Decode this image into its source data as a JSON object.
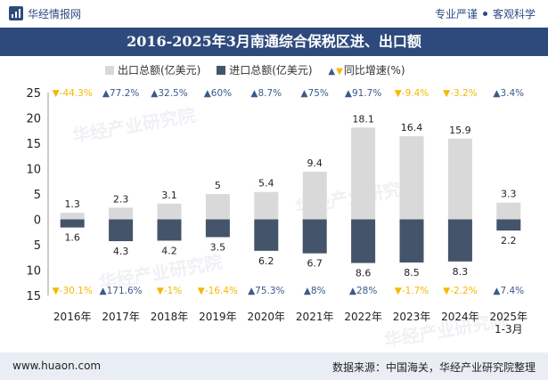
{
  "header": {
    "brand": "华经情报网",
    "slogan_left": "专业严谨",
    "slogan_right": "客观科学"
  },
  "title": "2016-2025年3月南通综合保税区进、出口额",
  "legend": {
    "export_label": "出口总额(亿美元)",
    "import_label": "进口总额(亿美元)",
    "yoy_label": "同比增速(%)"
  },
  "watermark": {
    "cn": "华经产业研究院",
    "en": "www.huaon.com"
  },
  "footer": {
    "site": "www.huaon.com",
    "source": "数据来源：中国海关，华经产业研究院整理"
  },
  "colors": {
    "export_bar": "#d9d9d9",
    "import_bar": "#44546a",
    "up_arrow": "#3a5a8c",
    "down_arrow": "#f5b800",
    "title_bg": "#2e4a7d"
  },
  "chart_data": {
    "type": "bar",
    "categories": [
      "2016年",
      "2017年",
      "2018年",
      "2019年",
      "2020年",
      "2021年",
      "2022年",
      "2023年",
      "2024年",
      "2025年\n1-3月"
    ],
    "series": [
      {
        "name": "出口总额(亿美元)",
        "values": [
          1.3,
          2.3,
          3.1,
          5,
          5.4,
          9.4,
          18.1,
          16.4,
          15.9,
          3.3
        ]
      },
      {
        "name": "进口总额(亿美元)",
        "values": [
          1.6,
          4.3,
          4.2,
          3.5,
          6.2,
          6.7,
          8.6,
          8.5,
          8.3,
          2.2
        ],
        "direction": "down"
      }
    ],
    "yoy_export": [
      "-44.3%",
      "77.2%",
      "32.5%",
      "60%",
      "8.7%",
      "75%",
      "91.7%",
      "-9.4%",
      "-3.2%",
      "3.4%"
    ],
    "yoy_import": [
      "-30.1%",
      "171.6%",
      "-1%",
      "-16.4%",
      "75.3%",
      "8%",
      "28%",
      "-1.7%",
      "-2.2%",
      "7.4%"
    ],
    "y_ticks_up": [
      25,
      20,
      15,
      10,
      5,
      0
    ],
    "y_ticks_down": [
      5,
      10,
      15
    ],
    "ylim": [
      -15,
      25
    ],
    "grid": false,
    "legend_position": "top"
  }
}
